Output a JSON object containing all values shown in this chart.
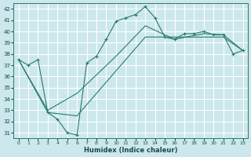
{
  "xlabel": "Humidex (Indice chaleur)",
  "bg_color": "#cce8ec",
  "grid_color": "#ffffff",
  "line_color": "#2a7a6a",
  "xlim": [
    -0.5,
    23.5
  ],
  "ylim": [
    30.5,
    42.5
  ],
  "xticks": [
    0,
    1,
    2,
    3,
    4,
    5,
    6,
    7,
    8,
    9,
    10,
    11,
    12,
    13,
    14,
    15,
    16,
    17,
    18,
    19,
    20,
    21,
    22,
    23
  ],
  "yticks": [
    31,
    32,
    33,
    34,
    35,
    36,
    37,
    38,
    39,
    40,
    41,
    42
  ],
  "main_series": {
    "x": [
      0,
      1,
      2,
      3,
      4,
      5,
      6,
      7,
      8,
      9,
      10,
      11,
      12,
      13,
      14,
      15,
      16,
      17,
      18,
      19,
      20,
      21,
      22,
      23
    ],
    "y": [
      37.5,
      37.0,
      37.5,
      32.8,
      32.2,
      31.0,
      30.8,
      37.2,
      37.8,
      39.3,
      40.9,
      41.2,
      41.5,
      42.2,
      41.2,
      39.5,
      39.3,
      39.8,
      39.8,
      40.0,
      39.7,
      39.7,
      38.0,
      38.3
    ]
  },
  "line2": {
    "x": [
      0,
      3,
      6,
      10,
      13,
      16,
      19,
      21,
      23
    ],
    "y": [
      37.5,
      33.0,
      34.5,
      37.8,
      40.5,
      39.3,
      39.8,
      39.7,
      38.3
    ]
  },
  "line3": {
    "x": [
      0,
      3,
      6,
      13,
      21,
      23
    ],
    "y": [
      37.5,
      32.8,
      32.5,
      39.5,
      39.5,
      38.3
    ]
  }
}
